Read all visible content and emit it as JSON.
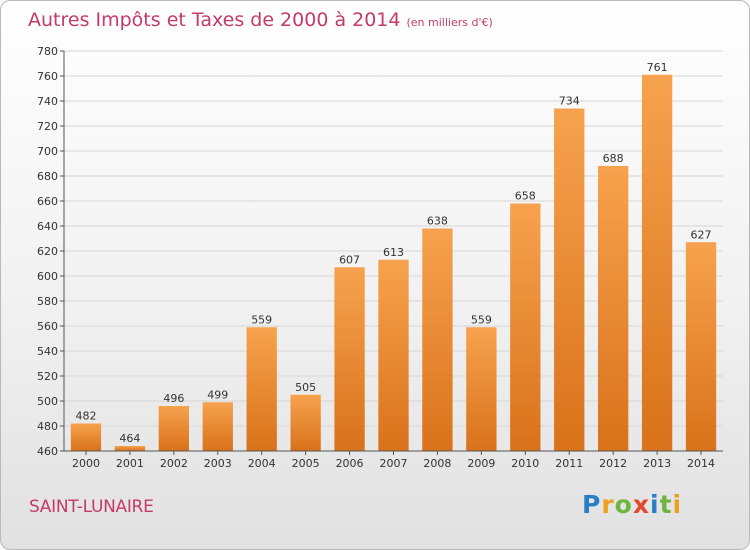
{
  "title": "Autres Impôts et Taxes de 2000 à 2014",
  "unit": "(en milliers d'€)",
  "commune": "SAINT-LUNAIRE",
  "logo": {
    "letters": [
      "P",
      "r",
      "o",
      "x",
      "i",
      "t",
      "i"
    ],
    "colors": [
      "#2a7fc4",
      "#f0a020",
      "#6fb43f",
      "#e2482c",
      "#2a7fc4",
      "#6fb43f",
      "#e8a020"
    ]
  },
  "colors": {
    "bar": "#f0923a",
    "bar_dark": "#d4741c",
    "title": "#c43a6a",
    "grid": "#d6d6d6"
  },
  "chart_data": {
    "type": "bar",
    "title": "Autres Impôts et Taxes de 2000 à 2014",
    "xlabel": "",
    "ylabel": "",
    "categories": [
      "2000",
      "2001",
      "2002",
      "2003",
      "2004",
      "2005",
      "2006",
      "2007",
      "2008",
      "2009",
      "2010",
      "2011",
      "2012",
      "2013",
      "2014"
    ],
    "values": [
      482,
      464,
      496,
      499,
      559,
      505,
      607,
      613,
      638,
      559,
      658,
      734,
      688,
      761,
      627
    ],
    "ylim": [
      460,
      780
    ],
    "yticks": [
      460,
      480,
      500,
      520,
      540,
      560,
      580,
      600,
      620,
      640,
      660,
      680,
      700,
      720,
      740,
      760,
      780
    ],
    "grid": true
  }
}
